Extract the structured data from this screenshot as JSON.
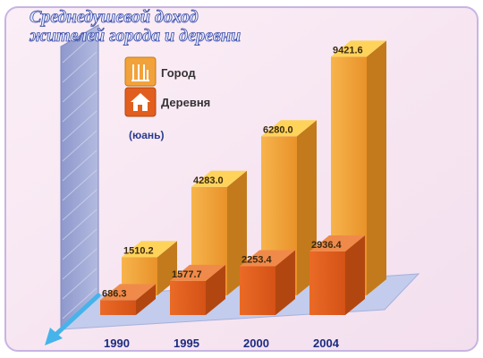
{
  "chart_data": {
    "type": "bar",
    "title_lines": [
      "Среднедушевой доход",
      "жителей города и деревни"
    ],
    "unit_label": "(юань)",
    "categories": [
      "1990",
      "1995",
      "2000",
      "2004"
    ],
    "series": [
      {
        "name": "Город",
        "values": [
          1510.2,
          4283.0,
          6280.0,
          9421.6
        ],
        "value_labels": [
          "1510.2",
          "4283.0",
          "6280.0",
          "9421.6"
        ]
      },
      {
        "name": "Деревня",
        "values": [
          686.3,
          1577.7,
          2253.4,
          2936.4
        ],
        "value_labels": [
          "686.3",
          "1577.7",
          "2253.4",
          "2936.4"
        ]
      }
    ],
    "ylim": [
      0,
      10000
    ],
    "legend_position": "top-left",
    "grid": false
  },
  "colors": {
    "frame_background": "#f8e6f1",
    "frame_border": "#b9a6dc",
    "floor": "#c3ccec",
    "wall_front": "#9fa8d3",
    "wall_side": "#c7cce8",
    "city_front": "#f2a23a",
    "city_side": "#c27a1c",
    "city_top": "#ffd35a",
    "village_front": "#e25e1e",
    "village_side": "#b24610",
    "village_top": "#f08a4a",
    "title_fill": "#dfe9ff",
    "title_stroke": "#3a4aa8",
    "axis_arrow": "#46b4ea",
    "category_text": "#1c2b80",
    "unit_text": "#2c3a8e"
  },
  "legend_icons": [
    "factory-icon",
    "house-icon"
  ]
}
